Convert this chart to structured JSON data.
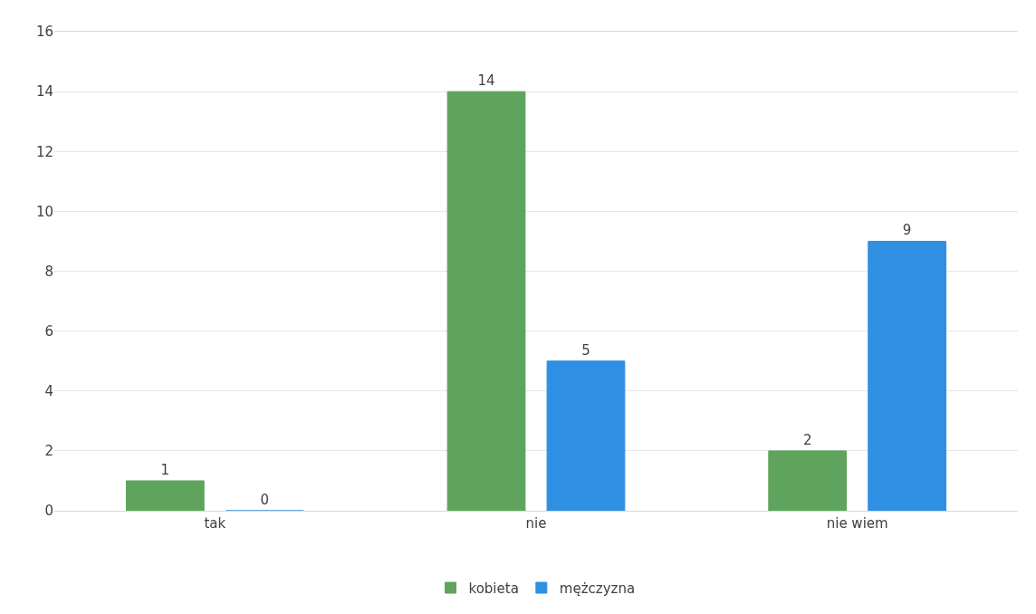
{
  "chart_data": {
    "type": "bar",
    "categories": [
      "tak",
      "nie",
      "nie wiem"
    ],
    "series": [
      {
        "name": "kobieta",
        "color": "#5fa45c",
        "values": [
          1,
          14,
          2
        ]
      },
      {
        "name": "mężczyzna",
        "color": "#2f8fe3",
        "values": [
          0,
          5,
          9
        ]
      }
    ],
    "ylim": [
      0,
      16
    ],
    "yticks": [
      0,
      2,
      4,
      6,
      8,
      10,
      12,
      14,
      16
    ],
    "grid": "y",
    "legend": "bottom",
    "data_labels": true
  }
}
